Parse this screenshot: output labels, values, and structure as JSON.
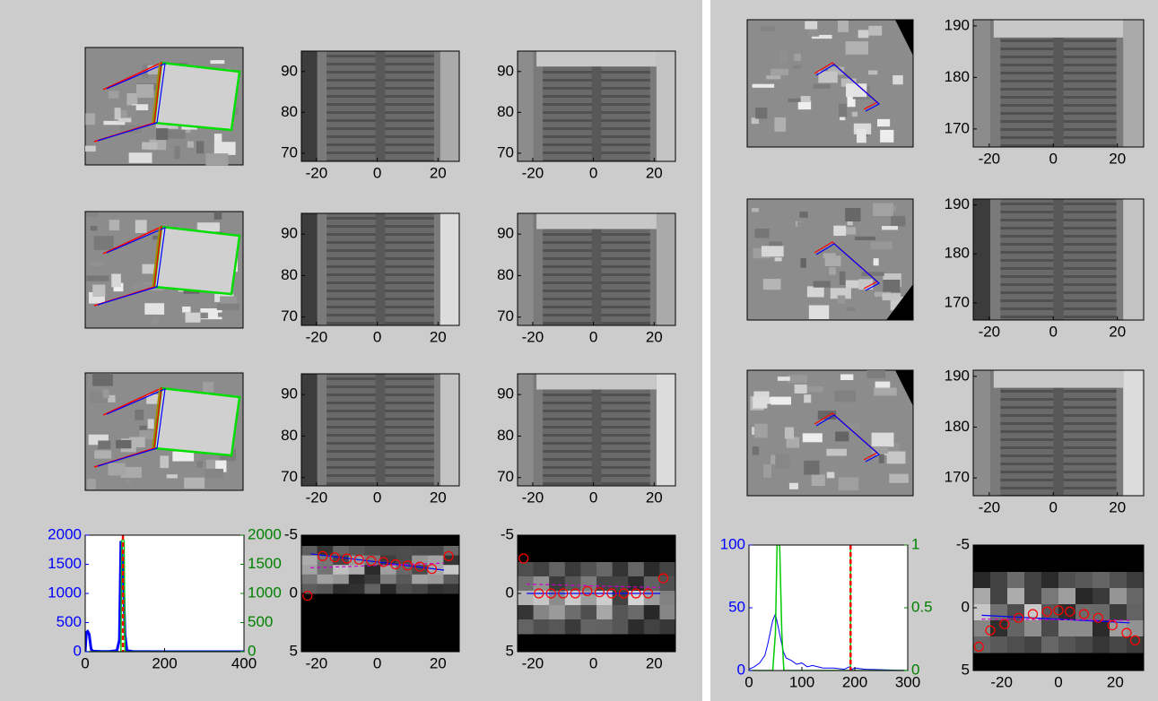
{
  "chart_data": [
    {
      "type": "image",
      "xlim": [
        -25,
        27
      ],
      "ylim": [
        68,
        95
      ],
      "xticks": [
        -20,
        0,
        20
      ],
      "yticks": [
        70,
        80,
        90
      ]
    },
    {
      "type": "image",
      "xlim": [
        -25,
        27
      ],
      "ylim": [
        68,
        95
      ],
      "xticks": [
        -20,
        0,
        20
      ],
      "yticks": [
        70,
        80,
        90
      ]
    },
    {
      "type": "image",
      "xlim": [
        -25,
        27
      ],
      "ylim": [
        68,
        95
      ],
      "xticks": [
        -20,
        0,
        20
      ],
      "yticks": [
        70,
        80,
        90
      ]
    },
    {
      "type": "image",
      "xlim": [
        -25,
        27
      ],
      "ylim": [
        68,
        95
      ],
      "xticks": [
        -20,
        0,
        20
      ],
      "yticks": [
        70,
        80,
        90
      ]
    },
    {
      "type": "image",
      "xlim": [
        -25,
        27
      ],
      "ylim": [
        68,
        95
      ],
      "xticks": [
        -20,
        0,
        20
      ],
      "yticks": [
        70,
        80,
        90
      ]
    },
    {
      "type": "image",
      "xlim": [
        -25,
        27
      ],
      "ylim": [
        68,
        95
      ],
      "xticks": [
        -20,
        0,
        20
      ],
      "yticks": [
        70,
        80,
        90
      ]
    },
    {
      "type": "histogram",
      "xlim": [
        0,
        400
      ],
      "ylim": [
        0,
        2000
      ],
      "y2lim": [
        0,
        2000
      ],
      "xticks": [
        0,
        200,
        400
      ],
      "yticks": [
        0,
        500,
        1000,
        1500,
        2000
      ],
      "y2ticks": [
        0,
        500,
        1000,
        1500,
        2000
      ],
      "ytick_color": "#0000ff",
      "y2tick_color": "#008000",
      "series": [
        {
          "color": "#0000ff",
          "x": [
            0,
            3,
            6,
            10,
            15,
            20,
            40,
            60,
            80,
            86,
            90,
            93,
            96,
            100,
            105,
            120,
            200,
            300,
            400
          ],
          "values": [
            0,
            330,
            350,
            300,
            40,
            10,
            5,
            5,
            20,
            200,
            1900,
            1600,
            1300,
            300,
            20,
            5,
            0,
            0,
            0
          ]
        },
        {
          "color": "#00cc00",
          "axis": "y2",
          "x": [
            0,
            90,
            92,
            95,
            98,
            100,
            400
          ],
          "values": [
            0,
            0,
            1900,
            1950,
            1900,
            0,
            0
          ]
        }
      ],
      "vlines": [
        {
          "x": 95,
          "color": "#ff0000",
          "dashed": true
        }
      ]
    },
    {
      "type": "scatter",
      "xlim": [
        -25,
        27
      ],
      "ylim": [
        -5,
        5
      ],
      "y_reversed": true,
      "xticks": [
        -20,
        0,
        20
      ],
      "yticks": [
        -5,
        0,
        5
      ],
      "color": "#ff0000",
      "x": [
        -23,
        -18,
        -14,
        -10,
        -6,
        -2,
        2,
        6,
        10,
        14,
        18,
        23.5
      ],
      "values": [
        0.2,
        -3.2,
        -3.1,
        -3.0,
        -2.9,
        -2.8,
        -2.7,
        -2.5,
        -2.4,
        -2.3,
        -2.1,
        -3.2
      ],
      "lines": [
        {
          "x": [
            -22,
            22
          ],
          "values": [
            -3.4,
            -2.0
          ],
          "color": "#0000ff",
          "dashed": false
        },
        {
          "x": [
            -22,
            22
          ],
          "values": [
            -2.2,
            -2.6
          ],
          "color": "#cc00cc",
          "dashed": true
        }
      ]
    },
    {
      "type": "scatter",
      "xlim": [
        -25,
        27
      ],
      "ylim": [
        -5,
        5
      ],
      "y_reversed": true,
      "xticks": [
        -20,
        0,
        20
      ],
      "yticks": [
        -5,
        0,
        5
      ],
      "color": "#ff0000",
      "x": [
        -23,
        -18,
        -14,
        -10,
        -6,
        -2,
        2,
        6,
        10,
        14,
        18,
        23
      ],
      "values": [
        -3.0,
        0.0,
        0.0,
        0.0,
        0.0,
        -0.2,
        -0.1,
        0.0,
        0.0,
        0.0,
        0.0,
        -1.3
      ],
      "lines": [
        {
          "x": [
            -22,
            22
          ],
          "values": [
            0.0,
            0.0
          ],
          "color": "#0000ff",
          "dashed": false
        },
        {
          "x": [
            -22,
            22
          ],
          "values": [
            -0.8,
            -0.5
          ],
          "color": "#cc00cc",
          "dashed": true
        }
      ]
    },
    {
      "type": "image",
      "xlim": [
        -25,
        28.2
      ],
      "ylim": [
        166.5,
        191.2
      ],
      "xticks": [
        -20,
        0,
        20
      ],
      "yticks": [
        170,
        180,
        190
      ]
    },
    {
      "type": "image",
      "xlim": [
        -25,
        28.2
      ],
      "ylim": [
        166.5,
        191.2
      ],
      "xticks": [
        -20,
        0,
        20
      ],
      "yticks": [
        170,
        180,
        190
      ]
    },
    {
      "type": "image",
      "xlim": [
        -25,
        28.2
      ],
      "ylim": [
        166.5,
        191.2
      ],
      "xticks": [
        -20,
        0,
        20
      ],
      "yticks": [
        170,
        180,
        190
      ]
    },
    {
      "type": "histogram",
      "xlim": [
        0,
        300
      ],
      "ylim": [
        0,
        100
      ],
      "y2lim": [
        0,
        1
      ],
      "xticks": [
        0,
        100,
        200,
        300
      ],
      "yticks": [
        0,
        50,
        100
      ],
      "y2ticks": [
        0,
        0.5,
        1
      ],
      "ytick_color": "#0000ff",
      "y2tick_color": "#008000",
      "series": [
        {
          "color": "#0000ff",
          "x": [
            0,
            10,
            20,
            30,
            35,
            40,
            45,
            50,
            55,
            60,
            65,
            70,
            80,
            90,
            100,
            110,
            120,
            140,
            160,
            180,
            190,
            195,
            200,
            220,
            300
          ],
          "values": [
            1,
            3,
            6,
            12,
            20,
            30,
            40,
            45,
            35,
            25,
            15,
            10,
            8,
            5,
            6,
            3,
            4,
            2,
            2,
            1,
            3,
            1,
            2,
            1,
            0
          ]
        },
        {
          "color": "#00cc00",
          "axis": "y2",
          "x": [
            0,
            45,
            50,
            53,
            58,
            62,
            66,
            300
          ],
          "values": [
            0,
            0,
            0.3,
            1,
            1,
            0.3,
            0,
            0
          ]
        }
      ],
      "vlines": [
        {
          "x": 192,
          "color": "#00cc00",
          "dashed": false
        },
        {
          "x": 192,
          "color": "#ff0000",
          "dashed": true
        }
      ]
    },
    {
      "type": "scatter",
      "xlim": [
        -30,
        30
      ],
      "ylim": [
        -5,
        5
      ],
      "y_reversed": true,
      "xticks": [
        -20,
        0,
        20
      ],
      "yticks": [
        -5,
        0,
        5
      ],
      "color": "#ff0000",
      "x": [
        -28,
        -24,
        -19,
        -14,
        -9,
        -4,
        0,
        4,
        9,
        14,
        19,
        24,
        27
      ],
      "values": [
        3.1,
        1.8,
        1.3,
        0.8,
        0.5,
        0.3,
        0.2,
        0.3,
        0.5,
        0.8,
        1.4,
        2.0,
        2.6
      ],
      "lines": [
        {
          "x": [
            -27,
            25
          ],
          "values": [
            0.6,
            1.2
          ],
          "color": "#0000ff",
          "dashed": false
        },
        {
          "x": [
            -27,
            25
          ],
          "values": [
            0.9,
            1.0
          ],
          "color": "#cc00cc",
          "dashed": true
        }
      ]
    }
  ]
}
